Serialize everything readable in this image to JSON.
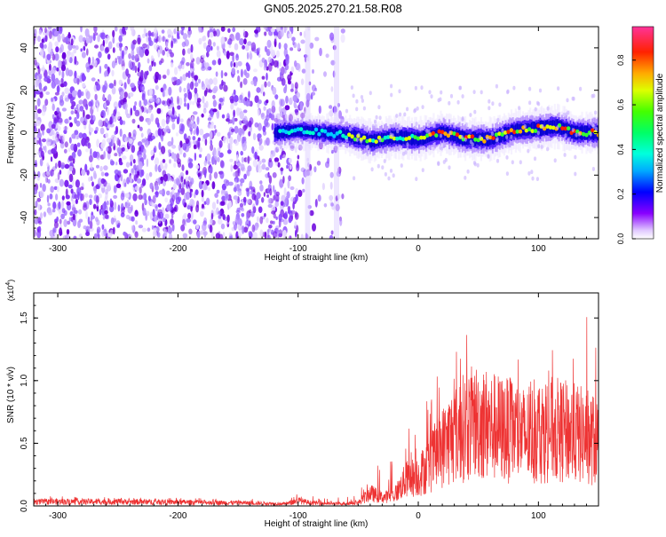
{
  "title": "GN05.2025.270.21.58.R08",
  "chart_data": [
    {
      "type": "heatmap",
      "xlabel": "Height of straight line (km)",
      "ylabel": "Frequency (Hz)",
      "xlim": [
        -320,
        150
      ],
      "ylim": [
        -50,
        50
      ],
      "xticks": [
        -300,
        -200,
        -100,
        0,
        100
      ],
      "yticks": [
        -40,
        -20,
        0,
        20,
        40
      ],
      "colorbar": {
        "label": "Normalized spectral amplitude",
        "range": [
          0,
          0.95
        ],
        "ticks": [
          0.0,
          0.2,
          0.4,
          0.6,
          0.8
        ]
      },
      "ridge_frequency_profile": {
        "x": [
          -120,
          -100,
          -80,
          -60,
          -40,
          -20,
          0,
          20,
          40,
          60,
          80,
          100,
          115,
          130,
          150
        ],
        "y": [
          0,
          1,
          0,
          -1,
          -4,
          -2,
          -3,
          0,
          -3,
          -3,
          1,
          2,
          3,
          0,
          0
        ]
      },
      "noise_region": {
        "x_from": -320,
        "x_to": -62
      }
    },
    {
      "type": "line",
      "xlabel": "Height of straight line (km)",
      "ylabel": "SNR (10 * v/v)",
      "y_multiplier_label": "(x10",
      "y_multiplier_exp": "4",
      "y_multiplier_close": ")",
      "xlim": [
        -320,
        150
      ],
      "ylim": [
        0,
        1.7
      ],
      "xticks": [
        -300,
        -200,
        -100,
        0,
        100
      ],
      "yticks": [
        "0.0",
        "0.5",
        "1.0",
        "1.5"
      ],
      "color": "#ee3333",
      "envelope": {
        "x": [
          -320,
          -250,
          -150,
          -110,
          -100,
          -90,
          -70,
          -50,
          -40,
          -30,
          -20,
          -10,
          0,
          10,
          20,
          30,
          40,
          50,
          60,
          70,
          80,
          90,
          100,
          110,
          120,
          130,
          140,
          150
        ],
        "mean": [
          0.04,
          0.04,
          0.03,
          0.02,
          0.05,
          0.03,
          0.02,
          0.03,
          0.12,
          0.08,
          0.1,
          0.25,
          0.28,
          0.4,
          0.55,
          0.68,
          0.75,
          0.8,
          0.75,
          0.72,
          0.7,
          0.65,
          0.7,
          0.72,
          0.7,
          0.68,
          0.65,
          0.6
        ],
        "max": [
          0.08,
          0.07,
          0.06,
          0.05,
          0.14,
          0.08,
          0.06,
          0.12,
          0.4,
          0.3,
          0.45,
          0.65,
          0.7,
          0.95,
          1.15,
          1.3,
          1.45,
          1.6,
          1.25,
          1.15,
          1.2,
          1.1,
          1.25,
          1.2,
          1.5,
          1.3,
          1.55,
          1.2
        ]
      }
    }
  ]
}
